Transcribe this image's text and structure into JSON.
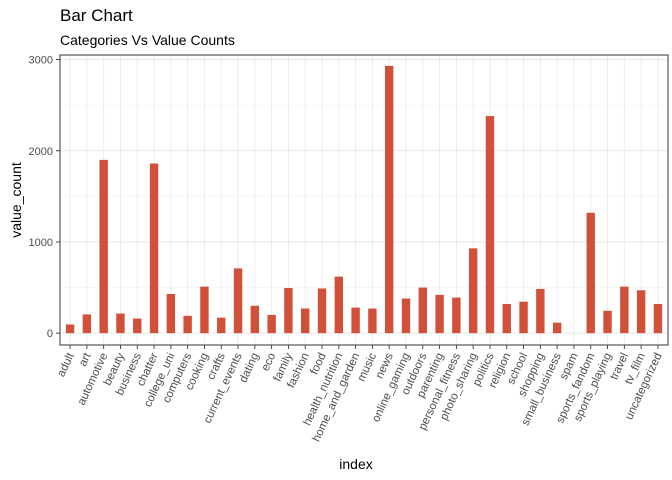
{
  "chart_data": {
    "type": "bar",
    "title": "Bar Chart",
    "subtitle": "Categories Vs Value Counts",
    "xlabel": "index",
    "ylabel": "value_count",
    "ylim": [
      -130,
      3050
    ],
    "yticks": [
      0,
      1000,
      2000,
      3000
    ],
    "bar_color": "#d0503a",
    "grid": true,
    "legend": "none",
    "categories": [
      "adult",
      "art",
      "automotive",
      "beauty",
      "business",
      "chatter",
      "college_uni",
      "computers",
      "cooking",
      "crafts",
      "current_events",
      "dating",
      "eco",
      "family",
      "fashion",
      "food",
      "health_nutrition",
      "home_and_garden",
      "music",
      "news",
      "online_gaming",
      "outdoors",
      "parenting",
      "personal_fitness",
      "photo_sharing",
      "politics",
      "religion",
      "school",
      "shopping",
      "small_business",
      "spam",
      "sports_fandom",
      "sports_playing",
      "travel",
      "tv_film",
      "uncategorized"
    ],
    "values": [
      95,
      205,
      1900,
      215,
      160,
      1860,
      430,
      190,
      510,
      170,
      710,
      300,
      200,
      495,
      270,
      490,
      620,
      280,
      270,
      2930,
      380,
      500,
      420,
      390,
      930,
      2380,
      320,
      345,
      485,
      115,
      0,
      1320,
      245,
      510,
      470,
      320
    ]
  }
}
